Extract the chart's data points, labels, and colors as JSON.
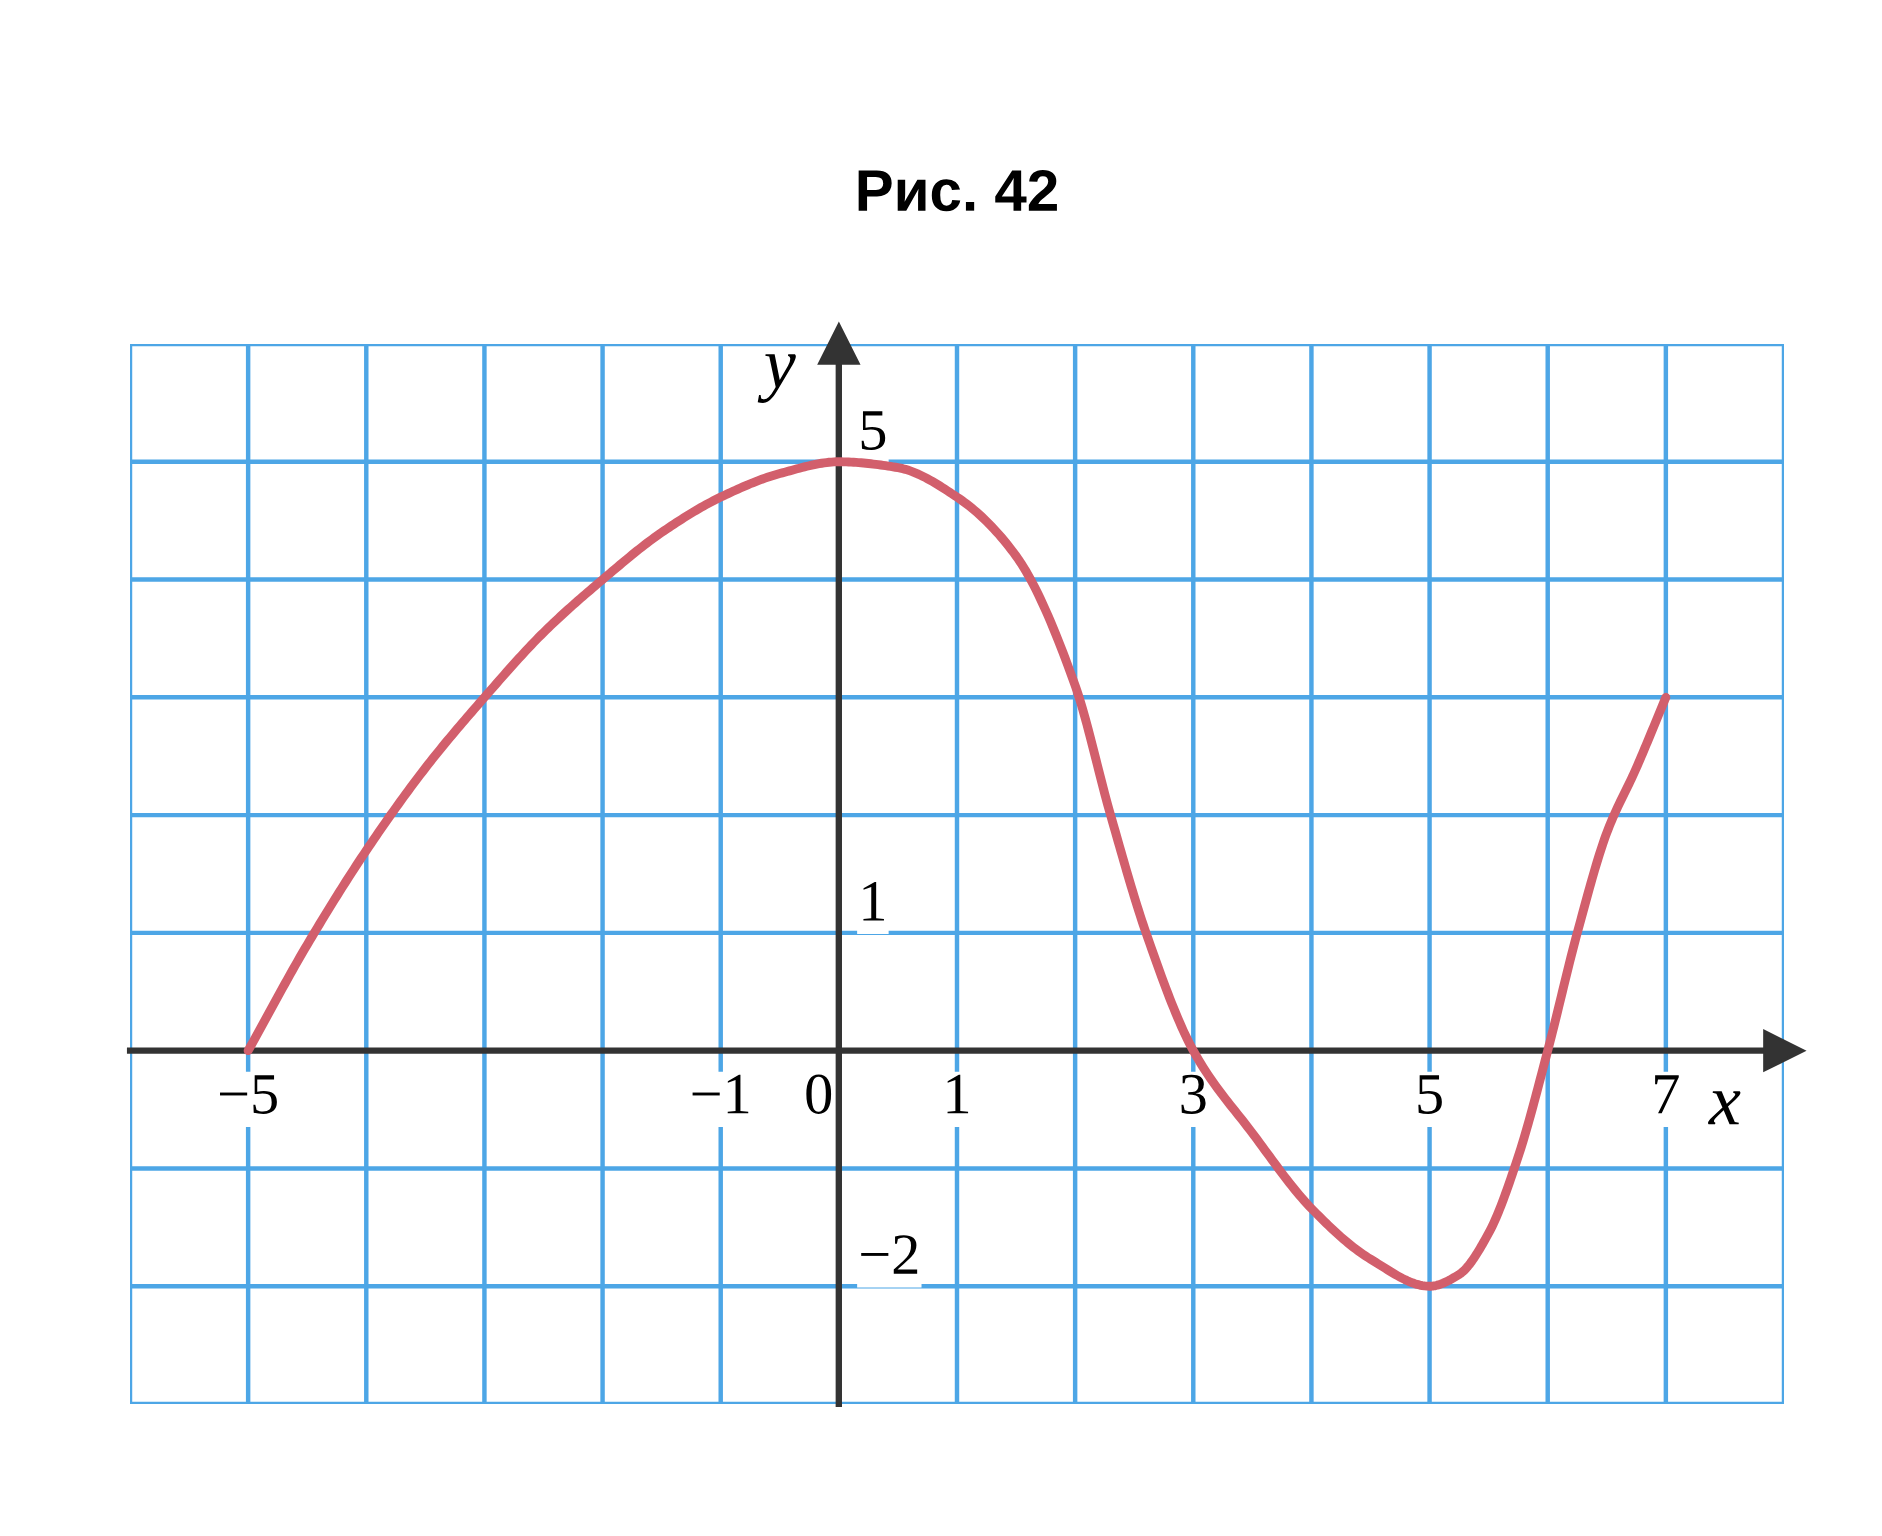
{
  "chart_data": {
    "type": "line",
    "title": "Рис. 42",
    "xlabel": "x",
    "ylabel": "y",
    "x": [
      -5,
      -4.5,
      -4,
      -3.5,
      -3,
      -2.5,
      -2,
      -1.5,
      -1,
      -0.5,
      0,
      0.5,
      1,
      1.5,
      2,
      2.3,
      2.6,
      3,
      3.5,
      4,
      4.5,
      5,
      5.25,
      5.5,
      5.75,
      6,
      6.25,
      6.5,
      6.75,
      7
    ],
    "series": [
      {
        "color": "#d25f6c",
        "values": [
          0,
          0.9,
          1.7,
          2.4,
          3.0,
          3.55,
          4.0,
          4.4,
          4.7,
          4.9,
          5,
          4.95,
          4.7,
          4.2,
          3.1,
          2,
          1,
          0,
          -0.7,
          -1.34,
          -1.77,
          -2,
          -1.9,
          -1.55,
          -0.9,
          0,
          1,
          1.85,
          2.4,
          3
        ]
      }
    ],
    "xlim": [
      -6,
      8
    ],
    "ylim": [
      -3,
      6
    ],
    "xticks": [
      {
        "value": -6,
        "label": null
      },
      {
        "value": -5,
        "label": "−5"
      },
      {
        "value": -4,
        "label": null
      },
      {
        "value": -3,
        "label": null
      },
      {
        "value": -2,
        "label": null
      },
      {
        "value": -1,
        "label": "−1"
      },
      0,
      1,
      {
        "value": 2,
        "label": null
      },
      3,
      {
        "value": 4,
        "label": null
      },
      5,
      {
        "value": 6,
        "label": null
      },
      7,
      {
        "value": 8,
        "label": null
      }
    ],
    "yticks": [
      {
        "value": -3,
        "label": null
      },
      {
        "value": -2,
        "label": "−2"
      },
      {
        "value": -1,
        "label": null
      },
      {
        "value": 0,
        "label": null
      },
      1,
      {
        "value": 2,
        "label": null
      },
      {
        "value": 3,
        "label": null
      },
      {
        "value": 4,
        "label": null
      },
      5,
      {
        "value": 6,
        "label": null
      }
    ],
    "grid": true,
    "line_style": "solid"
  }
}
